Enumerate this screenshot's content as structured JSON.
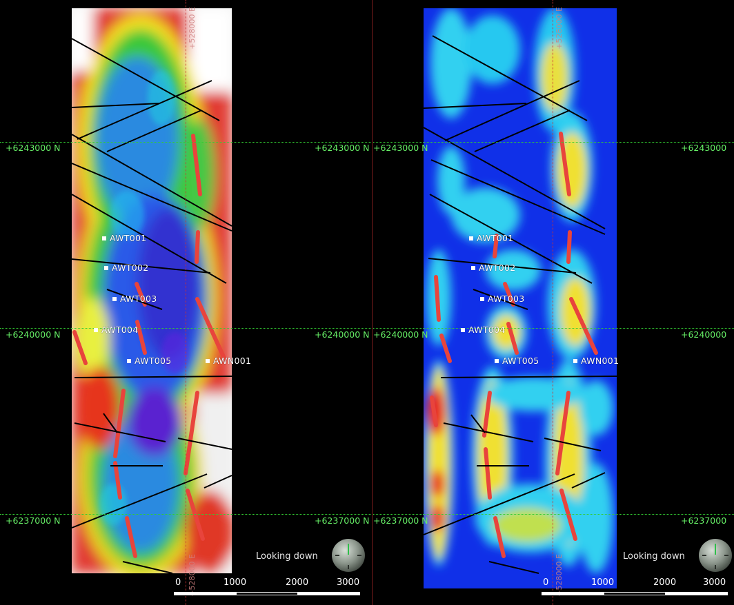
{
  "views": [
    {
      "id": "left",
      "colormap": "rainbow-with-white",
      "northing_labels": [
        "+6243000 N",
        "+6240000 N",
        "+6237000 N"
      ],
      "northing_labels_right": [
        "+6243000 N",
        "+6240000 N",
        "+6237000 N"
      ],
      "easting_label": "+528000 E",
      "wells": [
        "AWT001",
        "AWT002",
        "AWT003",
        "AWT004",
        "AWT005",
        "AWN001"
      ],
      "looking_down": "Looking down",
      "scale_ticks": [
        "0",
        "1000",
        "2000",
        "3000"
      ]
    },
    {
      "id": "right",
      "colormap": "blue-cyan-yellow-red",
      "northing_labels": [
        "+6243000 N",
        "+6240000 N",
        "+6237000 N"
      ],
      "northing_labels_right": [
        "+6243000",
        "+6240000",
        "+6237000"
      ],
      "easting_label": "+528000 E",
      "wells": [
        "AWT001",
        "AWT002",
        "AWT003",
        "AWT004",
        "AWT005",
        "AWN001"
      ],
      "looking_down": "Looking down",
      "scale_ticks": [
        "0",
        "1000",
        "2000",
        "3000"
      ]
    }
  ],
  "colors": {
    "grid_northing": "#33cc33",
    "grid_easting": "#cc3333",
    "label_green": "#66ee66",
    "anomaly_red": "#e8443c"
  },
  "icons": {
    "compass": "compass-icon",
    "well": "well-marker-icon"
  }
}
